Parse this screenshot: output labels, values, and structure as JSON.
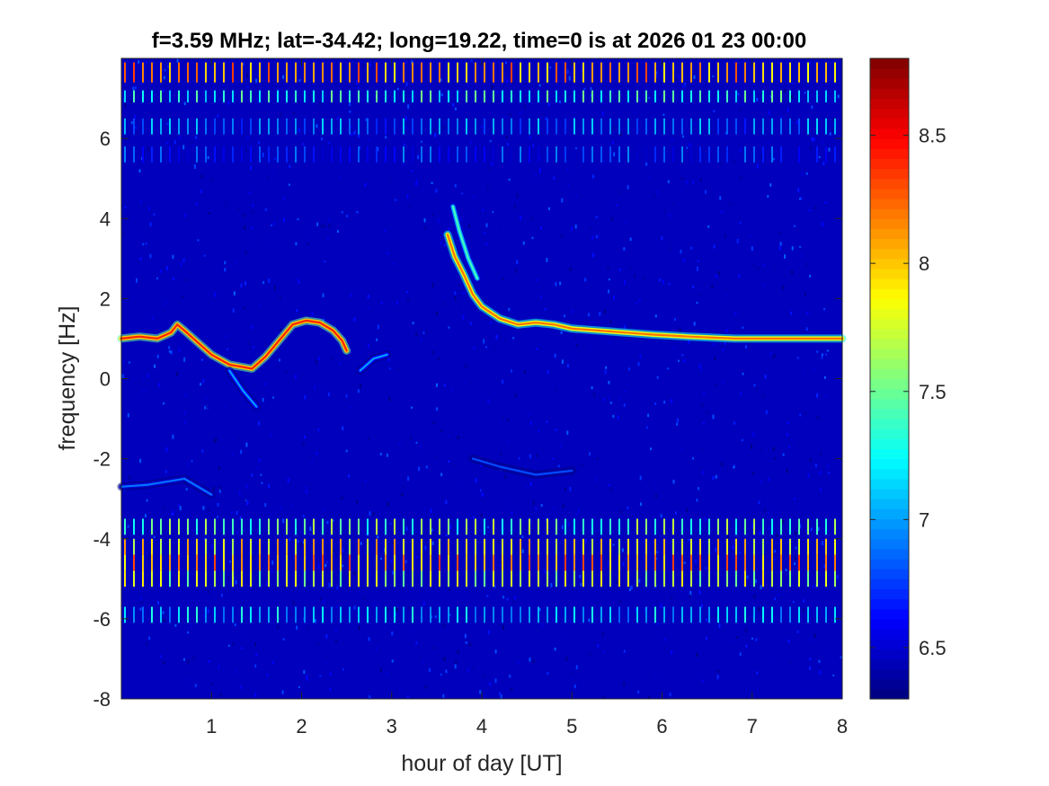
{
  "chart_data": {
    "type": "heatmap",
    "title": "f=3.59 MHz;  lat=-34.42; long=19.22, time=0 is at 2026 01 23 00:00",
    "xlabel": "hour of day [UT]",
    "ylabel": "frequency [Hz]",
    "xlim": [
      0,
      8
    ],
    "ylim": [
      -8,
      8
    ],
    "xticks": [
      "1",
      "2",
      "3",
      "4",
      "5",
      "6",
      "7",
      "8"
    ],
    "yticks": [
      "-8",
      "-6",
      "-4",
      "-2",
      "0",
      "2",
      "4",
      "6"
    ],
    "colorbar": {
      "lim": [
        6.3,
        8.8
      ],
      "ticks": [
        "6.5",
        "7",
        "7.5",
        "8",
        "8.5"
      ],
      "colormap": "jet"
    },
    "background_level": 6.45,
    "traces": [
      {
        "points": [
          [
            0.0,
            1.0
          ],
          [
            0.2,
            1.05
          ],
          [
            0.4,
            1.0
          ],
          [
            0.55,
            1.15
          ],
          [
            0.62,
            1.35
          ],
          [
            0.7,
            1.2
          ],
          [
            0.85,
            0.9
          ],
          [
            1.0,
            0.6
          ],
          [
            1.2,
            0.35
          ],
          [
            1.45,
            0.25
          ],
          [
            1.6,
            0.55
          ],
          [
            1.75,
            0.95
          ],
          [
            1.9,
            1.35
          ],
          [
            2.05,
            1.45
          ],
          [
            2.2,
            1.4
          ],
          [
            2.35,
            1.2
          ],
          [
            2.45,
            0.95
          ],
          [
            2.5,
            0.7
          ]
        ],
        "level": 8.4
      },
      {
        "points": [
          [
            3.62,
            3.6
          ],
          [
            3.7,
            3.05
          ],
          [
            3.8,
            2.6
          ],
          [
            3.9,
            2.1
          ],
          [
            4.0,
            1.8
          ],
          [
            4.2,
            1.5
          ],
          [
            4.4,
            1.35
          ],
          [
            4.6,
            1.4
          ],
          [
            4.8,
            1.35
          ],
          [
            5.0,
            1.25
          ],
          [
            5.3,
            1.2
          ],
          [
            5.6,
            1.15
          ],
          [
            5.9,
            1.1
          ],
          [
            6.3,
            1.05
          ],
          [
            6.8,
            1.0
          ],
          [
            7.3,
            1.0
          ],
          [
            8.0,
            1.0
          ]
        ],
        "level": 8.2
      },
      {
        "points": [
          [
            3.68,
            4.3
          ],
          [
            3.75,
            3.7
          ],
          [
            3.85,
            3.0
          ],
          [
            3.95,
            2.5
          ]
        ],
        "level": 7.4
      },
      {
        "points": [
          [
            1.2,
            0.2
          ],
          [
            1.35,
            -0.3
          ],
          [
            1.5,
            -0.7
          ]
        ],
        "level": 7.0
      },
      {
        "points": [
          [
            2.65,
            0.2
          ],
          [
            2.8,
            0.5
          ],
          [
            2.95,
            0.6
          ]
        ],
        "level": 7.0
      },
      {
        "points": [
          [
            0.0,
            -2.7
          ],
          [
            0.3,
            -2.65
          ],
          [
            0.7,
            -2.5
          ],
          [
            1.0,
            -2.9
          ]
        ],
        "level": 6.9
      },
      {
        "points": [
          [
            3.9,
            -2.0
          ],
          [
            4.2,
            -2.2
          ],
          [
            4.6,
            -2.4
          ],
          [
            5.0,
            -2.3
          ]
        ],
        "level": 6.8
      }
    ],
    "stripe_bands": [
      {
        "y": [
          7.4,
          7.9
        ],
        "level": 8.1
      },
      {
        "y": [
          6.9,
          7.2
        ],
        "level": 7.3
      },
      {
        "y": [
          6.1,
          6.5
        ],
        "level": 6.9
      },
      {
        "y": [
          5.4,
          5.8
        ],
        "level": 6.7
      },
      {
        "y": [
          -3.9,
          -3.5
        ],
        "level": 7.5
      },
      {
        "y": [
          -4.4,
          -4.0
        ],
        "level": 7.9
      },
      {
        "y": [
          -4.8,
          -4.4
        ],
        "level": 8.1
      },
      {
        "y": [
          -5.2,
          -4.8
        ],
        "level": 7.7
      },
      {
        "y": [
          -6.1,
          -5.7
        ],
        "level": 7.1
      }
    ]
  }
}
